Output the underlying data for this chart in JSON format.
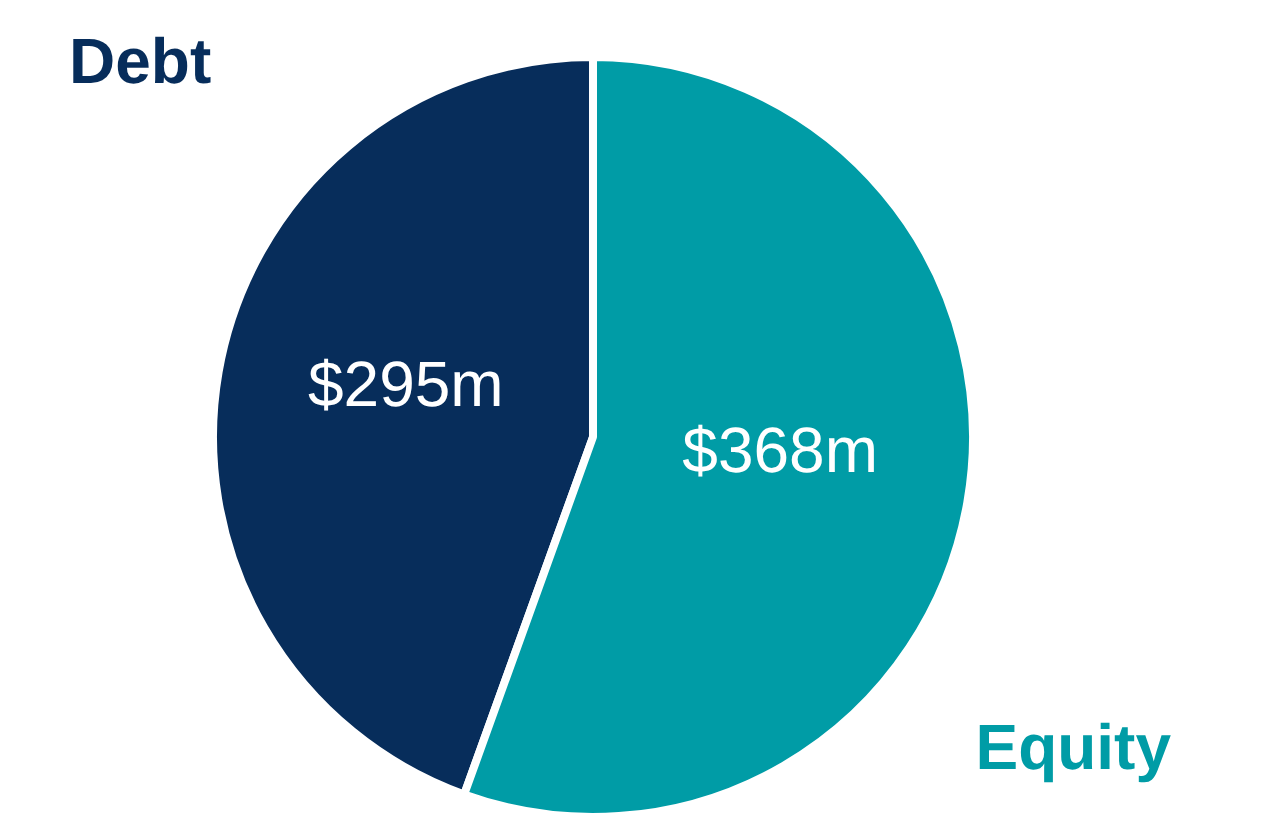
{
  "chart_data": {
    "type": "pie",
    "categories": [
      "Debt",
      "Equity"
    ],
    "values": [
      295,
      368
    ],
    "colors": [
      "#072d5b",
      "#009ca6"
    ],
    "value_labels": [
      "$295m",
      "$368m"
    ]
  }
}
